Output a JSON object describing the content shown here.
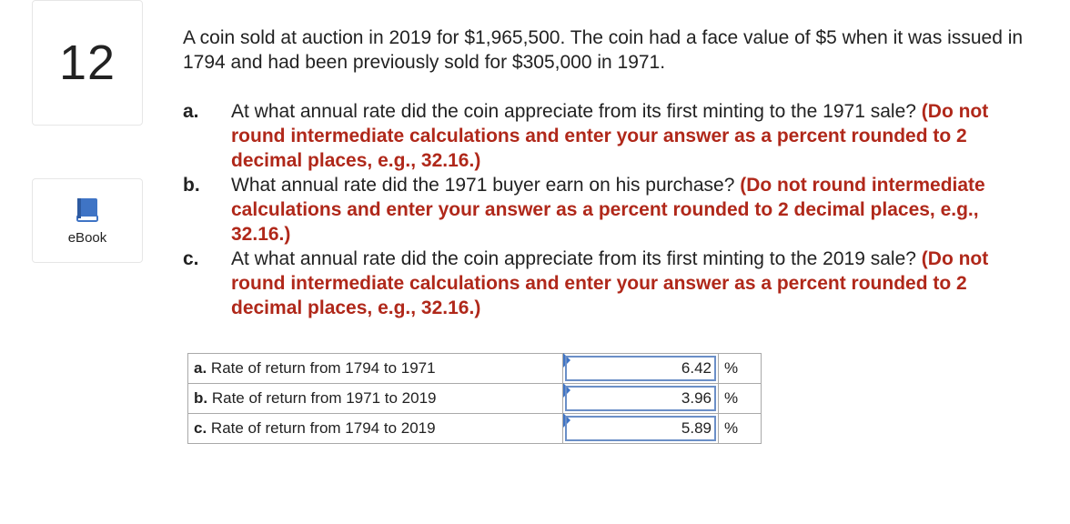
{
  "question_number": "12",
  "sidebar": {
    "ebook_label": "eBook"
  },
  "prompt": "A coin sold at auction in 2019 for $1,965,500. The coin had a face value of $5 when it was issued in 1794 and had been previously sold for $305,000 in 1971.",
  "parts": [
    {
      "letter": "a.",
      "question": "At what annual rate did the coin appreciate from its first minting to the 1971 sale?",
      "instruction": "(Do not round intermediate calculations and enter your answer as a percent rounded to 2 decimal places, e.g., 32.16.)"
    },
    {
      "letter": "b.",
      "question": "What annual rate did the 1971 buyer earn on his purchase?",
      "instruction": "(Do not round intermediate calculations and enter your answer as a percent rounded to 2 decimal places, e.g., 32.16.)"
    },
    {
      "letter": "c.",
      "question": "At what annual rate did the coin appreciate from its first minting to the 2019 sale?",
      "instruction": "(Do not round intermediate calculations and enter your answer as a percent rounded to 2 decimal places, e.g., 32.16.)"
    }
  ],
  "answers": [
    {
      "letter": "a.",
      "label": "Rate of return from 1794 to 1971",
      "value": "6.42",
      "unit": "%"
    },
    {
      "letter": "b.",
      "label": "Rate of return from 1971 to 2019",
      "value": "3.96",
      "unit": "%"
    },
    {
      "letter": "c.",
      "label": "Rate of return from 1794 to 2019",
      "value": "5.89",
      "unit": "%"
    }
  ],
  "colors": {
    "instruction": "#b0281a",
    "input_border": "#6b8fc7",
    "book_icon": "#3f74c5"
  }
}
